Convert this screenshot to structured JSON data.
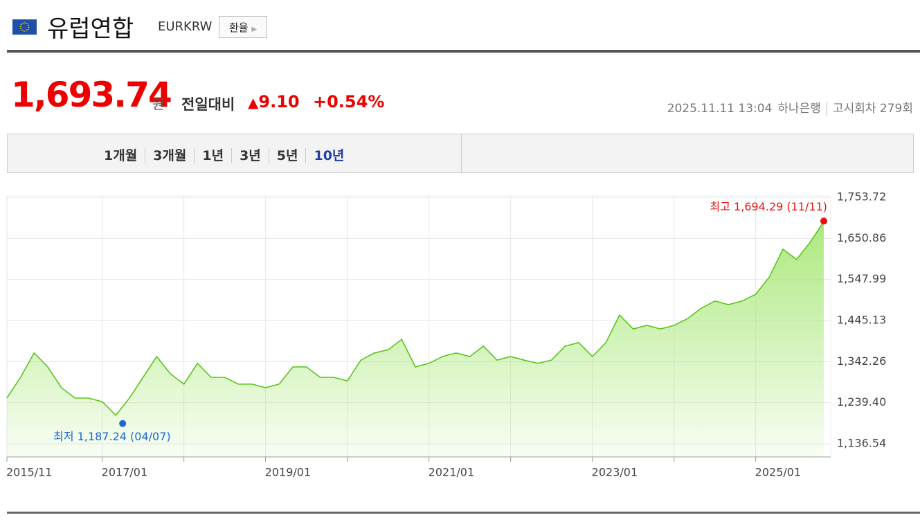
{
  "header": {
    "title": "유럽연합",
    "code": "EURKRW",
    "button": "환율"
  },
  "quote": {
    "price": "1,693.74",
    "unit": "원",
    "change_label": "전일대비",
    "change": "9.10",
    "change_pct": "+0.54%",
    "datetime": "2025.11.11 13:04",
    "bank": "하나은행",
    "round": "고시회차 279회"
  },
  "tabs": [
    "1개월",
    "3개월",
    "1년",
    "3년",
    "5년",
    "10년"
  ],
  "active_tab": 5,
  "chart_data": {
    "type": "area",
    "color": "#5cc41e",
    "fill_color": "#a8e878",
    "x": [
      "2015/11",
      "2016/01",
      "2016/03",
      "2016/05",
      "2016/07",
      "2016/09",
      "2016/11",
      "2017/01",
      "2017/03",
      "2017/05",
      "2017/07",
      "2017/09",
      "2017/11",
      "2018/01",
      "2018/03",
      "2018/05",
      "2018/07",
      "2018/09",
      "2018/11",
      "2019/01",
      "2019/03",
      "2019/05",
      "2019/07",
      "2019/09",
      "2019/11",
      "2020/01",
      "2020/03",
      "2020/05",
      "2020/07",
      "2020/09",
      "2020/11",
      "2021/01",
      "2021/03",
      "2021/05",
      "2021/07",
      "2021/09",
      "2021/11",
      "2022/01",
      "2022/03",
      "2022/05",
      "2022/07",
      "2022/09",
      "2022/11",
      "2023/01",
      "2023/03",
      "2023/05",
      "2023/07",
      "2023/09",
      "2023/11",
      "2024/01",
      "2024/03",
      "2024/05",
      "2024/07",
      "2024/09",
      "2024/11",
      "2025/01",
      "2025/03",
      "2025/05",
      "2025/07",
      "2025/09",
      "2025/11"
    ],
    "values": [
      1251,
      1303,
      1364,
      1329,
      1277,
      1251,
      1251,
      1242,
      1208,
      1251,
      1303,
      1355,
      1312,
      1286,
      1338,
      1303,
      1303,
      1286,
      1286,
      1277,
      1286,
      1329,
      1329,
      1303,
      1303,
      1294,
      1346,
      1364,
      1372,
      1398,
      1329,
      1338,
      1355,
      1364,
      1355,
      1381,
      1346,
      1355,
      1346,
      1338,
      1346,
      1381,
      1390,
      1355,
      1390,
      1459,
      1424,
      1433,
      1424,
      1433,
      1450,
      1476,
      1494,
      1485,
      1494,
      1511,
      1554,
      1624,
      1598,
      1641,
      1693
    ],
    "xlim": [
      "2015/11",
      "2025/11"
    ],
    "xticks": [
      "2015/11",
      "2017/01",
      "2019/01",
      "2021/01",
      "2023/01",
      "2025/01"
    ],
    "xgrid": [
      "2018/01",
      "2020/01",
      "2022/01",
      "2024/01"
    ],
    "ylim": [
      1103.58,
      1757.19
    ],
    "yticks": [
      {
        "value": 1136.54,
        "label": "1,136.54"
      },
      {
        "value": 1239.4,
        "label": "1,239.40"
      },
      {
        "value": 1342.26,
        "label": "1,342.26"
      },
      {
        "value": 1445.13,
        "label": "1,445.13"
      },
      {
        "value": 1547.99,
        "label": "1,547.99"
      },
      {
        "value": 1650.86,
        "label": "1,650.86"
      },
      {
        "value": 1753.72,
        "label": "1,753.72"
      }
    ],
    "grid": true,
    "markers": [
      {
        "x": "2017/04",
        "value": 1187.24,
        "label": "최저 1,187.24 (04/07)",
        "color": "#1a66d9"
      },
      {
        "x": "2025/11",
        "value": 1694.29,
        "label": "최고 1,694.29 (11/11)",
        "color": "#ee1111"
      }
    ]
  }
}
